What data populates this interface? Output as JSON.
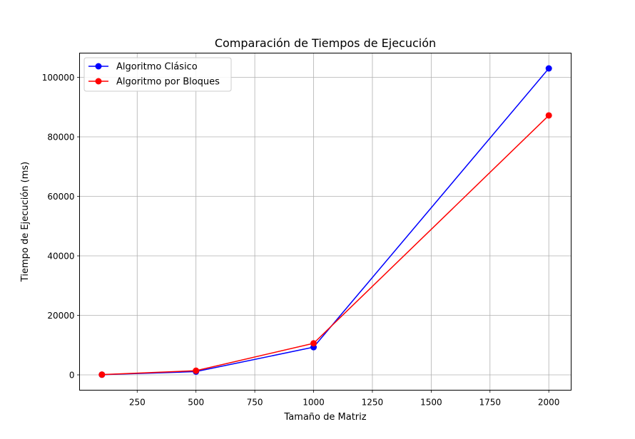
{
  "chart_data": {
    "type": "line",
    "title": "Comparación de Tiempos de Ejecución",
    "xlabel": "Tamaño de Matriz",
    "ylabel": "Tiempo de Ejecución (ms)",
    "x": [
      100,
      500,
      1000,
      2000
    ],
    "xlim": [
      5,
      2095
    ],
    "ylim": [
      -5150,
      108150
    ],
    "xticks": [
      250,
      500,
      750,
      1000,
      1250,
      1500,
      1750,
      2000
    ],
    "yticks": [
      0,
      20000,
      40000,
      60000,
      80000,
      100000
    ],
    "grid": true,
    "legend_position": "top-left",
    "series": [
      {
        "name": "Algoritmo Clásico",
        "color": "#0000ff",
        "marker": "circle",
        "values": [
          50,
          1100,
          9300,
          103000
        ]
      },
      {
        "name": "Algoritmo por Bloques",
        "color": "#ff0000",
        "marker": "circle",
        "values": [
          80,
          1400,
          10600,
          87200
        ]
      }
    ]
  }
}
